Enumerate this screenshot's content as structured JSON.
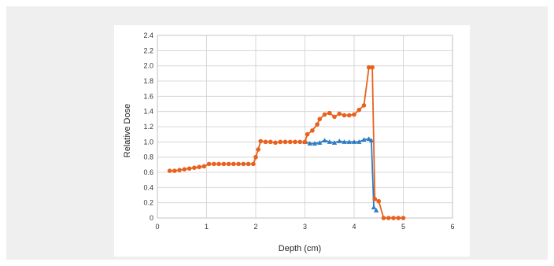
{
  "chart_data": {
    "type": "line",
    "title": "",
    "xlabel": "Depth (cm)",
    "ylabel": "Relative Dose",
    "xlim": [
      0,
      6
    ],
    "ylim": [
      0,
      2.4
    ],
    "xticks": [
      "0",
      "1",
      "2",
      "3",
      "4",
      "5",
      "6"
    ],
    "yticks": [
      "0",
      "0.2",
      "0.4",
      "0.6",
      "0.8",
      "1.0",
      "1.2",
      "1.4",
      "1.6",
      "1.8",
      "2.0",
      "2.2",
      "2.4"
    ],
    "grid": true,
    "series": [
      {
        "color": "#2e7cc4",
        "marker": "triangle",
        "points": [
          [
            3.0,
            1.0
          ],
          [
            3.1,
            0.98
          ],
          [
            3.2,
            0.98
          ],
          [
            3.3,
            0.99
          ],
          [
            3.4,
            1.02
          ],
          [
            3.5,
            1.0
          ],
          [
            3.6,
            0.99
          ],
          [
            3.7,
            1.01
          ],
          [
            3.8,
            1.0
          ],
          [
            3.9,
            1.0
          ],
          [
            4.0,
            1.0
          ],
          [
            4.1,
            1.0
          ],
          [
            4.2,
            1.03
          ],
          [
            4.3,
            1.04
          ],
          [
            4.35,
            1.02
          ],
          [
            4.4,
            0.14
          ],
          [
            4.45,
            0.1
          ]
        ]
      },
      {
        "color": "#e8621e",
        "marker": "circle",
        "points": [
          [
            0.25,
            0.62
          ],
          [
            0.35,
            0.62
          ],
          [
            0.45,
            0.63
          ],
          [
            0.55,
            0.64
          ],
          [
            0.65,
            0.65
          ],
          [
            0.75,
            0.66
          ],
          [
            0.85,
            0.67
          ],
          [
            0.95,
            0.68
          ],
          [
            1.05,
            0.71
          ],
          [
            1.15,
            0.71
          ],
          [
            1.25,
            0.71
          ],
          [
            1.35,
            0.71
          ],
          [
            1.45,
            0.71
          ],
          [
            1.55,
            0.71
          ],
          [
            1.65,
            0.71
          ],
          [
            1.75,
            0.71
          ],
          [
            1.85,
            0.71
          ],
          [
            1.95,
            0.71
          ],
          [
            2.0,
            0.8
          ],
          [
            2.05,
            0.9
          ],
          [
            2.1,
            1.01
          ],
          [
            2.2,
            1.0
          ],
          [
            2.3,
            1.0
          ],
          [
            2.4,
            0.99
          ],
          [
            2.5,
            1.0
          ],
          [
            2.6,
            1.0
          ],
          [
            2.7,
            1.0
          ],
          [
            2.8,
            1.0
          ],
          [
            2.9,
            1.0
          ],
          [
            3.0,
            1.0
          ],
          [
            3.05,
            1.1
          ],
          [
            3.15,
            1.15
          ],
          [
            3.25,
            1.23
          ],
          [
            3.3,
            1.3
          ],
          [
            3.4,
            1.36
          ],
          [
            3.5,
            1.38
          ],
          [
            3.6,
            1.33
          ],
          [
            3.7,
            1.37
          ],
          [
            3.8,
            1.35
          ],
          [
            3.9,
            1.35
          ],
          [
            4.0,
            1.36
          ],
          [
            4.1,
            1.42
          ],
          [
            4.2,
            1.48
          ],
          [
            4.3,
            1.98
          ],
          [
            4.37,
            1.98
          ],
          [
            4.42,
            0.25
          ],
          [
            4.5,
            0.22
          ],
          [
            4.6,
            0.0
          ],
          [
            4.7,
            0.0
          ],
          [
            4.8,
            0.0
          ],
          [
            4.9,
            0.0
          ],
          [
            5.0,
            0.0
          ]
        ]
      }
    ]
  }
}
